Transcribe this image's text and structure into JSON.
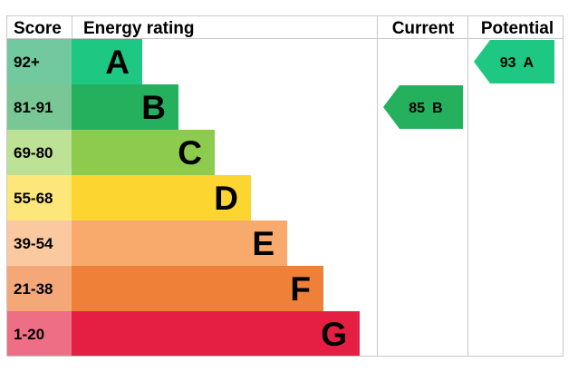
{
  "headers": {
    "score": "Score",
    "energy_rating": "Energy rating",
    "current": "Current",
    "potential": "Potential"
  },
  "chart_data": {
    "type": "bar",
    "categories": [
      "A",
      "B",
      "C",
      "D",
      "E",
      "F",
      "G"
    ],
    "score_ranges": [
      "92+",
      "81-91",
      "69-80",
      "55-68",
      "39-54",
      "21-38",
      "1-20"
    ],
    "bar_level": [
      1,
      2,
      3,
      4,
      5,
      6,
      7
    ],
    "band_colors": [
      "#1ec882",
      "#24b05d",
      "#8ccb4e",
      "#fdd530",
      "#f8aa6c",
      "#ee8137",
      "#e41f43"
    ],
    "score_colors": [
      "#72c9a0",
      "#79c795",
      "#bde195",
      "#fee77a",
      "#fbc9a0",
      "#f4a878",
      "#ee6e86"
    ],
    "current": {
      "value": 85,
      "band": "B",
      "color": "#24b05d"
    },
    "potential": {
      "value": 93,
      "band": "A",
      "color": "#1ec882"
    }
  }
}
